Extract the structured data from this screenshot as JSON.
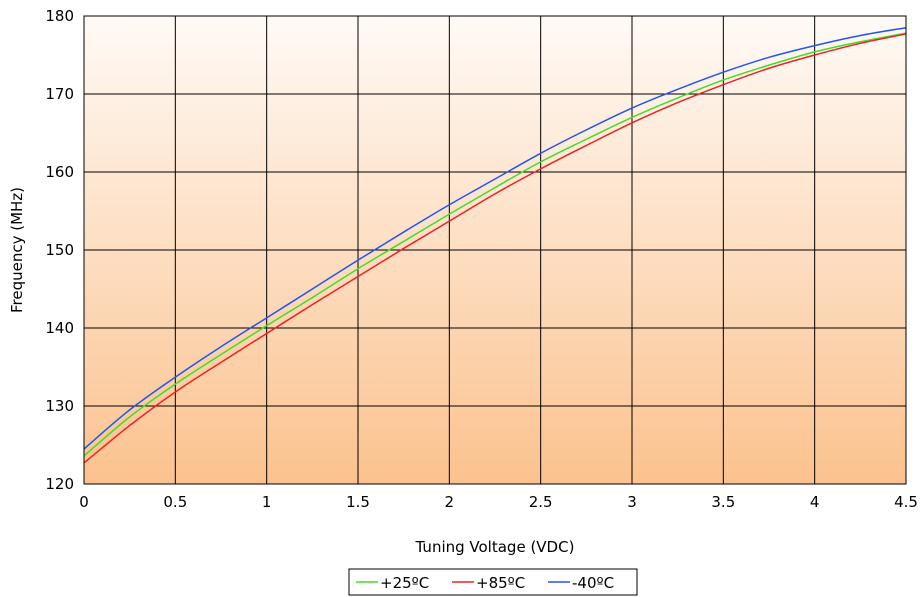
{
  "chart_data": {
    "type": "line",
    "title": "",
    "xlabel": "Tuning Voltage (VDC)",
    "ylabel": "Frequency (MHz)",
    "xlim": [
      0,
      4.5
    ],
    "ylim": [
      120,
      180
    ],
    "xticks": [
      0,
      0.5,
      1,
      1.5,
      2,
      2.5,
      3,
      3.5,
      4,
      4.5
    ],
    "yticks": [
      120,
      130,
      140,
      150,
      160,
      170,
      180
    ],
    "xtick_labels": [
      "0",
      "0.5",
      "1",
      "1.5",
      "2",
      "2.5",
      "3",
      "3.5",
      "4",
      "4.5"
    ],
    "ytick_labels": [
      "120",
      "130",
      "140",
      "150",
      "160",
      "170",
      "180"
    ],
    "grid": true,
    "legend_position": "bottom-center",
    "background": {
      "top": "#fffaf6",
      "bottom": "#fbc28e"
    },
    "x": [
      0,
      0.25,
      0.5,
      0.75,
      1,
      1.25,
      1.5,
      1.75,
      2,
      2.25,
      2.5,
      2.75,
      3,
      3.25,
      3.5,
      3.75,
      4,
      4.25,
      4.5
    ],
    "series": [
      {
        "name": "+25ºC",
        "color": "#44dd22",
        "values": [
          123.6,
          128.6,
          132.8,
          136.6,
          140.3,
          143.9,
          147.6,
          151.1,
          154.6,
          158.0,
          161.3,
          164.2,
          167.0,
          169.5,
          171.8,
          173.7,
          175.4,
          176.7,
          177.8
        ]
      },
      {
        "name": "+85ºC",
        "color": "#ee2222",
        "values": [
          122.7,
          127.5,
          131.8,
          135.6,
          139.3,
          143.0,
          146.6,
          150.2,
          153.7,
          157.2,
          160.4,
          163.4,
          166.3,
          168.9,
          171.2,
          173.3,
          175.0,
          176.5,
          177.7
        ]
      },
      {
        "name": "-40ºC",
        "color": "#2255ee",
        "values": [
          124.5,
          129.5,
          133.7,
          137.6,
          141.3,
          145.0,
          148.7,
          152.3,
          155.8,
          159.1,
          162.4,
          165.4,
          168.2,
          170.6,
          172.8,
          174.7,
          176.2,
          177.5,
          178.5
        ]
      }
    ]
  }
}
